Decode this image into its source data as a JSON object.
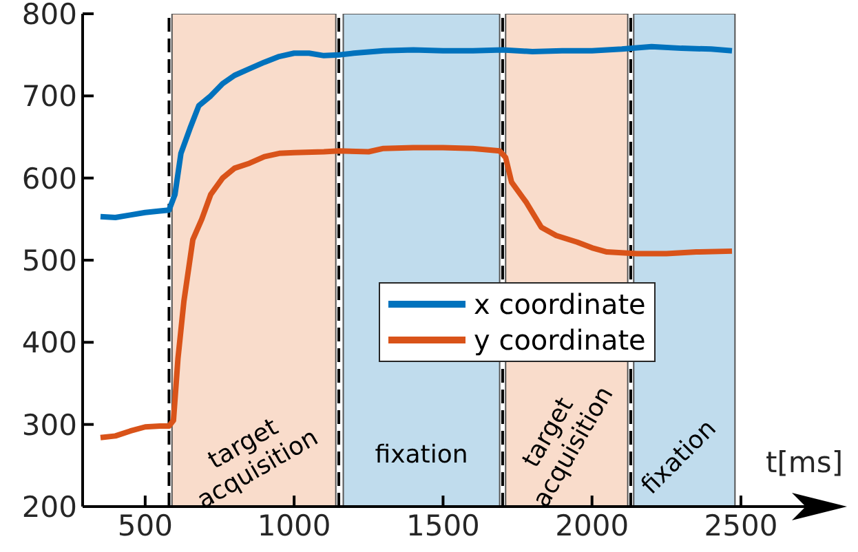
{
  "chart_data": {
    "type": "line",
    "xlabel": "t[ms]",
    "xlim": [
      290,
      2500
    ],
    "xticks": [
      500,
      1000,
      1500,
      2000,
      2500
    ],
    "ylim": [
      200,
      800
    ],
    "yticks": [
      200,
      300,
      400,
      500,
      600,
      700,
      800
    ],
    "grid": false,
    "legend": "right",
    "marker": "none",
    "line_style": "solid",
    "series": [
      {
        "name": "x coordinate",
        "color": "#0072bd",
        "x": [
          350,
          400,
          450,
          500,
          550,
          580,
          600,
          620,
          650,
          680,
          720,
          760,
          800,
          850,
          900,
          950,
          1000,
          1050,
          1100,
          1150,
          1200,
          1300,
          1400,
          1500,
          1600,
          1700,
          1800,
          1900,
          2000,
          2100,
          2200,
          2300,
          2400,
          2470
        ],
        "values": [
          553,
          552,
          555,
          558,
          560,
          561,
          580,
          630,
          660,
          688,
          700,
          715,
          725,
          733,
          741,
          748,
          752,
          752,
          749,
          750,
          752,
          755,
          756,
          755,
          755,
          756,
          754,
          755,
          755,
          757,
          760,
          758,
          757,
          755
        ]
      },
      {
        "name": "y coordinate",
        "color": "#d95319",
        "x": [
          350,
          400,
          450,
          500,
          550,
          580,
          595,
          610,
          630,
          660,
          690,
          720,
          760,
          800,
          850,
          900,
          950,
          1000,
          1100,
          1150,
          1250,
          1300,
          1400,
          1500,
          1600,
          1690,
          1710,
          1730,
          1780,
          1830,
          1880,
          1950,
          2000,
          2050,
          2150,
          2250,
          2350,
          2470
        ],
        "values": [
          284,
          286,
          292,
          297,
          298,
          298,
          305,
          380,
          450,
          525,
          550,
          580,
          600,
          612,
          618,
          626,
          630,
          631,
          632,
          633,
          632,
          636,
          637,
          637,
          636,
          633,
          625,
          595,
          570,
          540,
          530,
          522,
          515,
          510,
          508,
          508,
          510,
          511
        ]
      }
    ],
    "ref_lines": [
      {
        "axis": "x",
        "value": 580,
        "color": "#000000",
        "line_style": "dashed"
      },
      {
        "axis": "x",
        "value": 1150,
        "color": "#000000",
        "line_style": "dashed"
      },
      {
        "axis": "x",
        "value": 1700,
        "color": "#000000",
        "line_style": "dashed"
      },
      {
        "axis": "x",
        "value": 2130,
        "color": "#000000",
        "line_style": "dashed"
      }
    ],
    "bands": [
      {
        "axis": "x",
        "from": 590,
        "to": 1140,
        "label": "target acquisition",
        "color": "#f9dccb"
      },
      {
        "axis": "x",
        "from": 1165,
        "to": 1690,
        "label": "fixation",
        "color": "#c0dced"
      },
      {
        "axis": "x",
        "from": 1710,
        "to": 2120,
        "label": "target acquisition",
        "color": "#f9dccb"
      },
      {
        "axis": "x",
        "from": 2140,
        "to": 2480,
        "label": "fixation",
        "color": "#c0dced"
      }
    ]
  }
}
